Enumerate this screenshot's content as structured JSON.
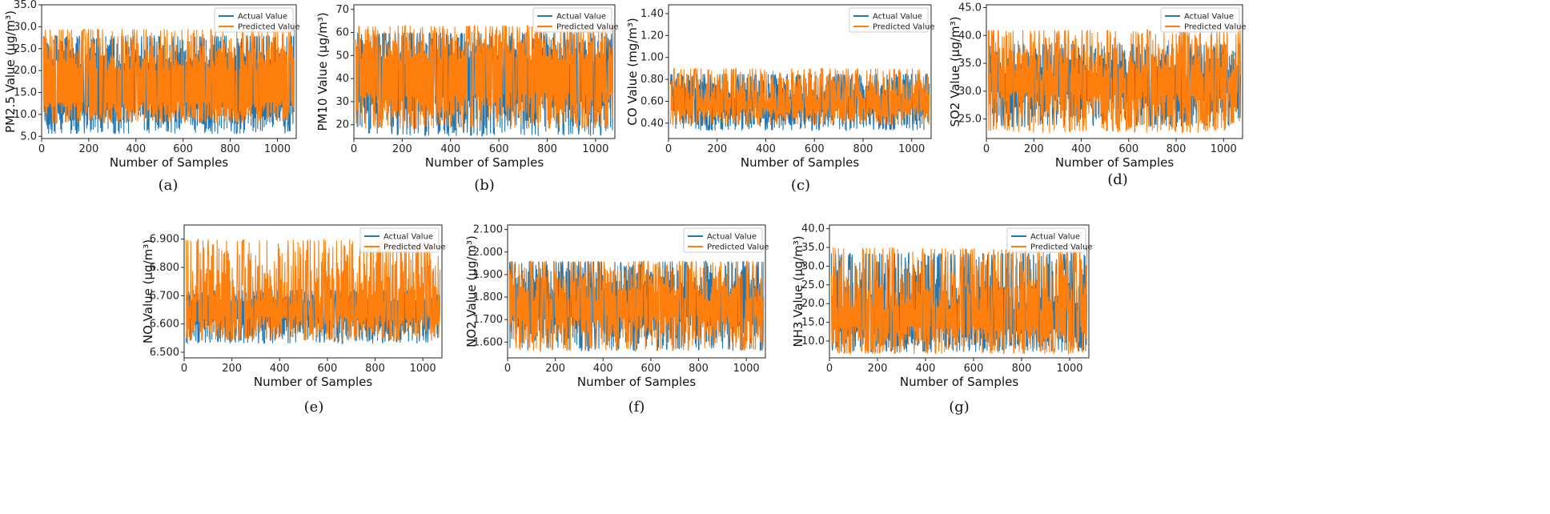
{
  "chart_data": [
    {
      "type": "line",
      "panel": "(a)",
      "xlabel": "Number of Samples",
      "ylabel": "PM2.5 Value (µg/m³)",
      "xlim": [
        0,
        1080
      ],
      "ylim": [
        4.5,
        35
      ],
      "xticks": [
        0,
        200,
        400,
        600,
        800,
        1000
      ],
      "yticks": [
        5,
        10,
        15,
        20,
        25,
        30,
        35
      ],
      "series": [
        {
          "name": "Actual Value",
          "color": "#1f77b4",
          "low": [
            5.5,
            12
          ],
          "high": [
            21,
            28
          ]
        },
        {
          "name": "Predicted Value",
          "color": "#ff7f0e",
          "low": [
            8,
            13
          ],
          "high": [
            20,
            29.5
          ]
        }
      ]
    },
    {
      "type": "line",
      "panel": "(b)",
      "xlabel": "Number of Samples",
      "ylabel": "PM10 Value (µg/m³)",
      "xlim": [
        0,
        1080
      ],
      "ylim": [
        14,
        72
      ],
      "xticks": [
        0,
        200,
        400,
        600,
        800,
        1000
      ],
      "yticks": [
        20,
        30,
        40,
        50,
        60,
        70
      ],
      "series": [
        {
          "name": "Actual Value",
          "color": "#1f77b4",
          "low": [
            15,
            32
          ],
          "high": [
            45,
            60
          ]
        },
        {
          "name": "Predicted Value",
          "color": "#ff7f0e",
          "low": [
            18,
            34
          ],
          "high": [
            48,
            63
          ]
        }
      ]
    },
    {
      "type": "line",
      "panel": "(c)",
      "xlabel": "Number of Samples",
      "ylabel": "CO Value (mg/m³)",
      "xlim": [
        0,
        1080
      ],
      "ylim": [
        0.26,
        1.48
      ],
      "xticks": [
        0,
        200,
        400,
        600,
        800,
        1000
      ],
      "yticks": [
        0.4,
        0.6,
        0.8,
        1.0,
        1.2,
        1.4
      ],
      "series": [
        {
          "name": "Actual Value",
          "color": "#1f77b4",
          "low": [
            0.33,
            0.52
          ],
          "high": [
            0.62,
            0.85
          ]
        },
        {
          "name": "Predicted Value",
          "color": "#ff7f0e",
          "low": [
            0.38,
            0.54
          ],
          "high": [
            0.6,
            0.9
          ]
        }
      ]
    },
    {
      "type": "line",
      "panel": "(d)",
      "xlabel": "Number of Samples",
      "ylabel": "SO2 Value (µg/m³)",
      "xlim": [
        0,
        1080
      ],
      "ylim": [
        21.5,
        45.5
      ],
      "xticks": [
        0,
        200,
        400,
        600,
        800,
        1000
      ],
      "yticks": [
        25,
        30,
        35,
        40,
        45
      ],
      "series": [
        {
          "name": "Actual Value",
          "color": "#1f77b4",
          "low": [
            23.5,
            30
          ],
          "high": [
            33,
            38.5
          ]
        },
        {
          "name": "Predicted Value",
          "color": "#ff7f0e",
          "low": [
            22.5,
            30
          ],
          "high": [
            32,
            41
          ]
        }
      ]
    },
    {
      "type": "line",
      "panel": "(e)",
      "xlabel": "Number of Samples",
      "ylabel": "NO Value (µg/m³)",
      "xlim": [
        0,
        1080
      ],
      "ylim": [
        6.48,
        6.95
      ],
      "xticks": [
        0,
        200,
        400,
        600,
        800,
        1000
      ],
      "yticks": [
        6.5,
        6.6,
        6.7,
        6.8,
        6.9
      ],
      "series": [
        {
          "name": "Actual Value",
          "color": "#1f77b4",
          "low": [
            6.53,
            6.62
          ],
          "high": [
            6.68,
            6.72
          ]
        },
        {
          "name": "Predicted Value",
          "color": "#ff7f0e",
          "low": [
            6.54,
            6.63
          ],
          "high": [
            6.66,
            6.9
          ]
        }
      ]
    },
    {
      "type": "line",
      "panel": "(f)",
      "xlabel": "Number of Samples",
      "ylabel": "NO2 Value (µg/m³)",
      "xlim": [
        0,
        1080
      ],
      "ylim": [
        1.53,
        2.12
      ],
      "xticks": [
        0,
        200,
        400,
        600,
        800,
        1000
      ],
      "yticks": [
        1.6,
        1.7,
        1.8,
        1.9,
        2.0,
        2.1
      ],
      "series": [
        {
          "name": "Actual Value",
          "color": "#1f77b4",
          "low": [
            1.56,
            1.72
          ],
          "high": [
            1.8,
            1.96
          ]
        },
        {
          "name": "Predicted Value",
          "color": "#ff7f0e",
          "low": [
            1.56,
            1.72
          ],
          "high": [
            1.78,
            1.96
          ]
        }
      ]
    },
    {
      "type": "line",
      "panel": "(g)",
      "xlabel": "Number of Samples",
      "ylabel": "NH3 Value (µg/m³)",
      "xlim": [
        0,
        1080
      ],
      "ylim": [
        5.5,
        41
      ],
      "xticks": [
        0,
        200,
        400,
        600,
        800,
        1000
      ],
      "yticks": [
        10,
        15,
        20,
        25,
        30,
        35,
        40
      ],
      "series": [
        {
          "name": "Actual Value",
          "color": "#1f77b4",
          "low": [
            7,
            14
          ],
          "high": [
            18,
            33.5
          ]
        },
        {
          "name": "Predicted Value",
          "color": "#ff7f0e",
          "low": [
            6.5,
            14
          ],
          "high": [
            18,
            35
          ]
        }
      ]
    }
  ],
  "legend": {
    "actual": "Actual Value",
    "predicted": "Predicted Value"
  }
}
